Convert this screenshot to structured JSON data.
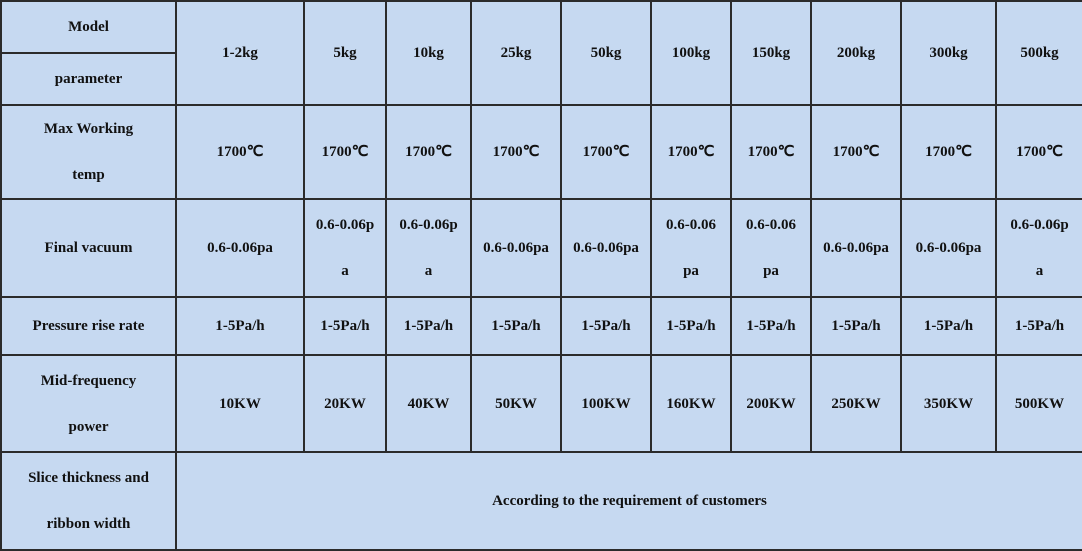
{
  "table": {
    "header": {
      "corner_top": "Model",
      "corner_bottom": "parameter",
      "columns": [
        "1-2kg",
        "5kg",
        "10kg",
        "25kg",
        "50kg",
        "100kg",
        "150kg",
        "200kg",
        "300kg",
        "500kg"
      ]
    },
    "rows": [
      {
        "label": "Max Working temp",
        "cells": [
          "1700℃",
          "1700℃",
          "1700℃",
          "1700℃",
          "1700℃",
          "1700℃",
          "1700℃",
          "1700℃",
          "1700℃",
          "1700℃"
        ]
      },
      {
        "label": "Final vacuum",
        "cells": [
          "0.6-0.06pa",
          "0.6-0.06pa",
          "0.6-0.06pa",
          "0.6-0.06pa",
          "0.6-0.06pa",
          "0.6-0.06pa",
          "0.6-0.06pa",
          "0.6-0.06pa",
          "0.6-0.06pa",
          "0.6-0.06pa"
        ]
      },
      {
        "label": "Pressure rise rate",
        "cells": [
          "1-5Pa/h",
          "1-5Pa/h",
          "1-5Pa/h",
          "1-5Pa/h",
          "1-5Pa/h",
          "1-5Pa/h",
          "1-5Pa/h",
          "1-5Pa/h",
          "1-5Pa/h",
          "1-5Pa/h"
        ]
      },
      {
        "label": "Mid-frequency power",
        "cells": [
          "10KW",
          "20KW",
          "40KW",
          "50KW",
          "100KW",
          "160KW",
          "200KW",
          "250KW",
          "350KW",
          "500KW"
        ]
      }
    ],
    "footer": {
      "label": "Slice thickness and ribbon width",
      "text": "According to the requirement of customers"
    }
  }
}
